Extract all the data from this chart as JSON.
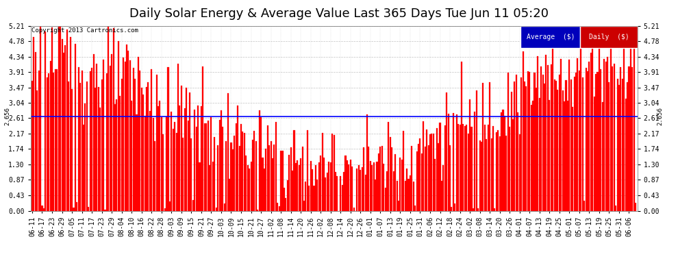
{
  "title": "Daily Solar Energy & Average Value Last 365 Days Tue Jun 11 05:20",
  "copyright": "Copyright 2013 Cartronics.com",
  "average_value": 2.656,
  "average_label": "2.656",
  "ylim": [
    0.0,
    5.21
  ],
  "yticks": [
    0.0,
    0.43,
    0.87,
    1.3,
    1.74,
    2.17,
    2.61,
    3.04,
    3.47,
    3.91,
    4.34,
    4.78,
    5.21
  ],
  "bar_color": "#FF0000",
  "average_line_color": "#0000FF",
  "background_color": "#FFFFFF",
  "grid_color": "#BBBBBB",
  "title_fontsize": 13,
  "tick_fontsize": 7,
  "legend_blue_color": "#0000BB",
  "legend_red_color": "#CC0000",
  "x_labels": [
    "06-11",
    "06-17",
    "06-23",
    "06-29",
    "07-05",
    "07-11",
    "07-17",
    "07-23",
    "07-29",
    "08-04",
    "08-10",
    "08-16",
    "08-22",
    "08-28",
    "09-03",
    "09-09",
    "09-15",
    "09-21",
    "09-27",
    "10-03",
    "10-09",
    "10-15",
    "10-21",
    "10-27",
    "11-02",
    "11-08",
    "11-14",
    "11-20",
    "11-26",
    "12-02",
    "12-08",
    "12-14",
    "12-20",
    "12-26",
    "01-01",
    "01-07",
    "01-13",
    "01-19",
    "01-25",
    "01-31",
    "02-06",
    "02-12",
    "02-18",
    "02-24",
    "03-02",
    "03-08",
    "03-14",
    "03-20",
    "03-26",
    "04-01",
    "04-07",
    "04-13",
    "04-19",
    "04-25",
    "05-01",
    "05-07",
    "05-13",
    "05-19",
    "05-25",
    "05-31",
    "06-06"
  ],
  "num_bars": 365,
  "seed": 123
}
